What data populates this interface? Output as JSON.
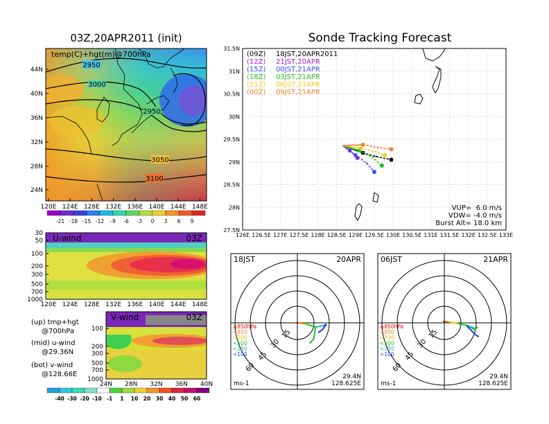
{
  "left_title": "03Z,20APR2011 (init)",
  "right_title": "Sonde Tracking Forecast",
  "map_panel": {
    "label": "temp(C)+hgt(m)@700hPa",
    "lat_labels": [
      "44N",
      "40N",
      "36N",
      "32N",
      "28N",
      "24N"
    ],
    "lon_labels": [
      "120E",
      "124E",
      "128E",
      "132E",
      "136E",
      "140E",
      "144E",
      "148E"
    ],
    "contour_labels": [
      "2950",
      "3000",
      "2950",
      "3050",
      "3100"
    ]
  },
  "temp_colorbar": [
    "-21",
    "-18",
    "-15",
    "-12",
    "-9",
    "-6",
    "-3",
    "0",
    "3",
    "6",
    "9"
  ],
  "uwind_panel": {
    "label": "U-wind",
    "time": "03Z",
    "p_labels": [
      "30",
      "50",
      "100",
      "200",
      "300",
      "500",
      "700",
      "1000"
    ],
    "lon_labels": [
      "120E",
      "124E",
      "128E",
      "132E",
      "136E",
      "140E",
      "144E",
      "148E"
    ]
  },
  "vwind_panel": {
    "label": "V-wind",
    "time": "03Z",
    "p_labels": [
      "100",
      "200",
      "300",
      "500",
      "700",
      "1000"
    ],
    "lat_labels": [
      "24N",
      "28N",
      "32N",
      "36N",
      "40N"
    ]
  },
  "wind_colorbar": [
    "-40",
    "-30",
    "-20",
    "-10",
    "-1",
    "1",
    "10",
    "20",
    "30",
    "40",
    "50",
    "60"
  ],
  "notes": [
    {
      "a": "(up) tmp+hgt",
      "b": "@700hPa"
    },
    {
      "a": "(mid) u-wind",
      "b": "@29.36N"
    },
    {
      "a": "(bot) v-wind",
      "b": "@128.66E"
    }
  ],
  "track_panel": {
    "lat_labels": [
      "31.5N",
      "31N",
      "30.5N",
      "30N",
      "29.5N",
      "29N",
      "28.5N",
      "28N",
      "27.5N"
    ],
    "lon_labels": [
      "126E",
      "126.5E",
      "127E",
      "127.5E",
      "128E",
      "128.5E",
      "129E",
      "129.5E",
      "130E",
      "130.5E",
      "131E",
      "131.5E",
      "132E",
      "132.5E",
      "133E"
    ],
    "legend": [
      {
        "z": "(09Z)",
        "t": "18JST,20APR2011",
        "color": "#000000"
      },
      {
        "z": "(12Z)",
        "t": "21JST,20APR",
        "color": "#a020c8"
      },
      {
        "z": "(15Z)",
        "t": "00JST,21APR",
        "color": "#3050f0"
      },
      {
        "z": "(18Z)",
        "t": "03JST,21APR",
        "color": "#20c020"
      },
      {
        "z": "(21Z)",
        "t": "06JST,21APR",
        "color": "#e8d020"
      },
      {
        "z": "(00Z)",
        "t": "09JST,21APR",
        "color": "#f08030"
      }
    ],
    "info": [
      "VUP=  6.0 m/s",
      "VDW= -4.0 m/s",
      "Burst Alt= 18.0 km"
    ]
  },
  "chart_data": {
    "type": "line",
    "title": "Sonde Tracking Forecast",
    "xlim": [
      126,
      133
    ],
    "ylim": [
      27.5,
      31.5
    ],
    "series": [
      {
        "name": "(09Z) 18JST,20APR2011",
        "color": "#000000",
        "points": [
          [
            128.66,
            29.36
          ],
          [
            129.2,
            29.2
          ],
          [
            129.55,
            29.12
          ],
          [
            129.95,
            29.05
          ]
        ]
      },
      {
        "name": "(12Z) 21JST,20APR",
        "color": "#a020c8",
        "points": [
          [
            128.66,
            29.36
          ],
          [
            128.85,
            29.25
          ],
          [
            129.0,
            29.13
          ],
          [
            129.05,
            29.09
          ]
        ]
      },
      {
        "name": "(15Z) 00JST,21APR",
        "color": "#3050f0",
        "points": [
          [
            128.66,
            29.36
          ],
          [
            129.0,
            29.15
          ],
          [
            129.3,
            28.97
          ],
          [
            129.5,
            28.78
          ]
        ]
      },
      {
        "name": "(18Z) 03JST,21APR",
        "color": "#20c020",
        "points": [
          [
            128.66,
            29.36
          ],
          [
            129.1,
            29.25
          ],
          [
            129.45,
            29.1
          ],
          [
            129.7,
            28.92
          ]
        ]
      },
      {
        "name": "(21Z) 06JST,21APR",
        "color": "#e8d020",
        "points": [
          [
            128.66,
            29.36
          ],
          [
            129.15,
            29.3
          ],
          [
            129.55,
            29.22
          ],
          [
            129.78,
            29.15
          ]
        ]
      },
      {
        "name": "(00Z) 09JST,21APR",
        "color": "#f08030",
        "points": [
          [
            128.66,
            29.36
          ],
          [
            129.2,
            29.38
          ],
          [
            129.6,
            29.32
          ],
          [
            129.95,
            29.28
          ]
        ]
      }
    ]
  },
  "hodo_left": {
    "left": "18JST",
    "right": "20APR",
    "lat": "29.4N",
    "lon": "128.625E",
    "unit": "ms-1",
    "ring_labels": [
      "15",
      "30",
      "45",
      "60"
    ],
    "legend": [
      {
        "t": "≥850hPa",
        "c": "#e00000"
      },
      {
        "t": "<850",
        "c": "#f08030"
      },
      {
        "t": "<700",
        "c": "#d8c010"
      },
      {
        "t": "<500",
        "c": "#20c020"
      },
      {
        "t": "<250",
        "c": "#20b0c0"
      },
      {
        "t": "<100",
        "c": "#2040e0"
      }
    ]
  },
  "hodo_right": {
    "left": "06JST",
    "right": "21APR",
    "lat": "29.4N",
    "lon": "128.625E",
    "unit": "ms-1",
    "ring_labels": [
      "15",
      "30",
      "45",
      "60"
    ],
    "legend": [
      {
        "t": "≥850hPa",
        "c": "#e00000"
      },
      {
        "t": "<850",
        "c": "#f08030"
      },
      {
        "t": "<700",
        "c": "#d8c010"
      },
      {
        "t": "<500",
        "c": "#20c020"
      },
      {
        "t": "<250",
        "c": "#20b0c0"
      },
      {
        "t": "<100",
        "c": "#2040e0"
      }
    ]
  }
}
